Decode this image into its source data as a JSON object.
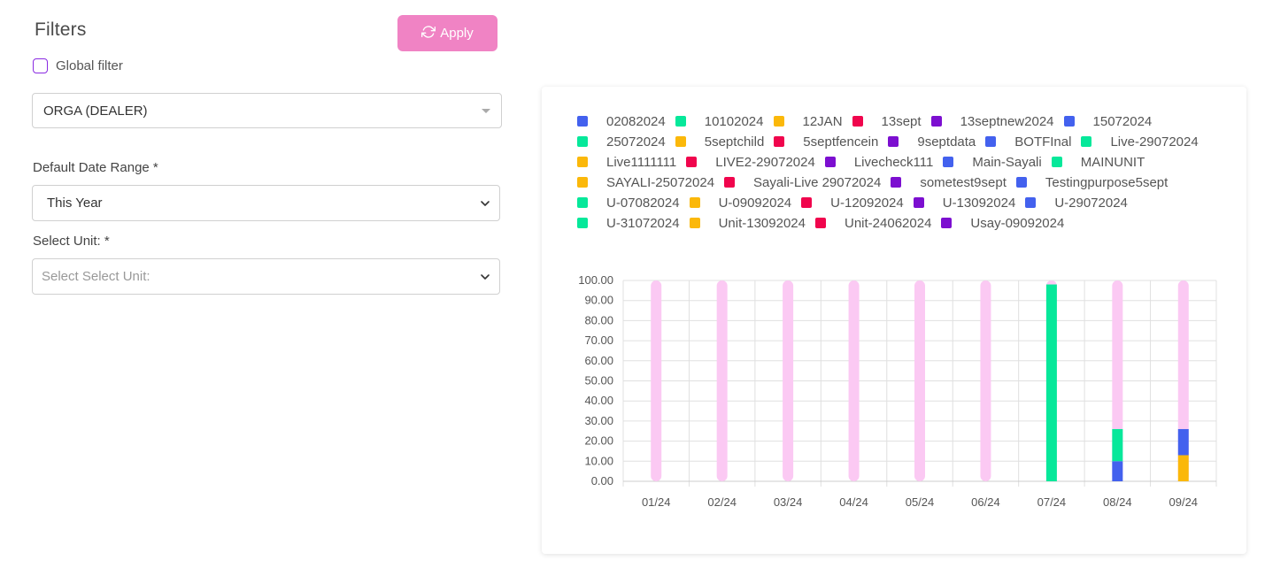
{
  "filters": {
    "title": "Filters",
    "apply_label": "Apply",
    "global_filter_label": "Global filter",
    "organization_value": "ORGA (DEALER)",
    "date_range_label": "Default Date Range *",
    "date_range_value": "This Year",
    "unit_label": "Select Unit: *",
    "unit_placeholder": "Select Select Unit:"
  },
  "colors": {
    "accent": "#f083c4",
    "checkbox_border": "#8a2be2",
    "palette": [
      "#4361ee",
      "#06e89a",
      "#fbb80a",
      "#f0054d",
      "#7c0fd0"
    ],
    "background_bar": "#fbc9f3"
  },
  "chart_data": {
    "type": "bar",
    "stacked": true,
    "legend_placement": "top",
    "grid": true,
    "ylim": [
      0,
      100
    ],
    "y_ticks": [
      "0.00",
      "10.00",
      "20.00",
      "30.00",
      "40.00",
      "50.00",
      "60.00",
      "70.00",
      "80.00",
      "90.00",
      "100.00"
    ],
    "categories": [
      "01/24",
      "02/24",
      "03/24",
      "04/24",
      "05/24",
      "06/24",
      "07/24",
      "08/24",
      "09/24"
    ],
    "legend": [
      {
        "name": "02082024",
        "color": "#4361ee"
      },
      {
        "name": "10102024",
        "color": "#06e89a"
      },
      {
        "name": "12JAN",
        "color": "#fbb80a"
      },
      {
        "name": "13sept",
        "color": "#f0054d"
      },
      {
        "name": "13septnew2024",
        "color": "#7c0fd0"
      },
      {
        "name": "15072024",
        "color": "#4361ee"
      },
      {
        "name": "25072024",
        "color": "#06e89a"
      },
      {
        "name": "5septchild",
        "color": "#fbb80a"
      },
      {
        "name": "5septfencein",
        "color": "#f0054d"
      },
      {
        "name": "9septdata",
        "color": "#7c0fd0"
      },
      {
        "name": "BOTFInal",
        "color": "#4361ee"
      },
      {
        "name": "Live-29072024",
        "color": "#06e89a"
      },
      {
        "name": "Live1111111",
        "color": "#fbb80a"
      },
      {
        "name": "LIVE2-29072024",
        "color": "#f0054d"
      },
      {
        "name": "Livecheck111",
        "color": "#7c0fd0"
      },
      {
        "name": "Main-Sayali",
        "color": "#4361ee"
      },
      {
        "name": "MAINUNIT",
        "color": "#06e89a"
      },
      {
        "name": "SAYALI-25072024",
        "color": "#fbb80a"
      },
      {
        "name": "Sayali-Live 29072024",
        "color": "#f0054d"
      },
      {
        "name": "sometest9sept",
        "color": "#7c0fd0"
      },
      {
        "name": "Testingpurpose5sept",
        "color": "#4361ee"
      },
      {
        "name": "U-07082024",
        "color": "#06e89a"
      },
      {
        "name": "U-09092024",
        "color": "#fbb80a"
      },
      {
        "name": "U-12092024",
        "color": "#f0054d"
      },
      {
        "name": "U-13092024",
        "color": "#7c0fd0"
      },
      {
        "name": "U-29072024",
        "color": "#4361ee"
      },
      {
        "name": "U-31072024",
        "color": "#06e89a"
      },
      {
        "name": "Unit-13092024",
        "color": "#fbb80a"
      },
      {
        "name": "Unit-24062024",
        "color": "#f0054d"
      },
      {
        "name": "Usay-09092024",
        "color": "#7c0fd0"
      }
    ],
    "bars": [
      {
        "category": "01/24",
        "segments": []
      },
      {
        "category": "02/24",
        "segments": []
      },
      {
        "category": "03/24",
        "segments": []
      },
      {
        "category": "04/24",
        "segments": []
      },
      {
        "category": "05/24",
        "segments": []
      },
      {
        "category": "06/24",
        "segments": []
      },
      {
        "category": "07/24",
        "segments": [
          {
            "color": "#06e89a",
            "value": 98
          }
        ]
      },
      {
        "category": "08/24",
        "segments": [
          {
            "color": "#4361ee",
            "value": 10
          },
          {
            "color": "#06e89a",
            "value": 16
          }
        ]
      },
      {
        "category": "09/24",
        "segments": [
          {
            "color": "#fbb80a",
            "value": 13
          },
          {
            "color": "#4361ee",
            "value": 13
          }
        ]
      }
    ]
  }
}
